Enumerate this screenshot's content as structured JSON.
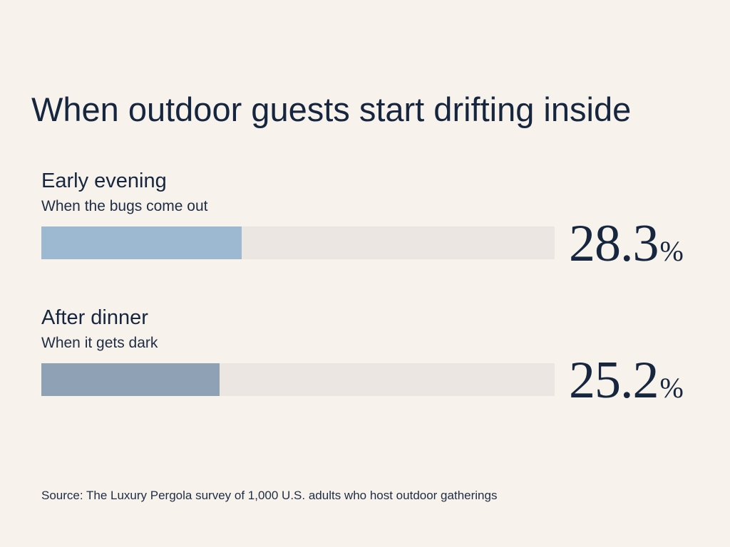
{
  "chart_data": {
    "type": "bar",
    "title": "When outdoor guests start drifting inside",
    "categories": [
      "Early evening",
      "After dinner"
    ],
    "subtitles": [
      "When the bugs come out",
      "When it gets dark"
    ],
    "values": [
      28.3,
      25.2
    ],
    "value_labels": [
      "28.3",
      "25.2"
    ],
    "unit": "%",
    "xlim": [
      0,
      72.5
    ],
    "colors": [
      "#9db9d1",
      "#8fa2b5"
    ],
    "track_color": "#ebe6e2",
    "orientation": "horizontal",
    "source": "Source: The Luxury Pergola survey of 1,000 U.S. adults who host outdoor gatherings"
  }
}
